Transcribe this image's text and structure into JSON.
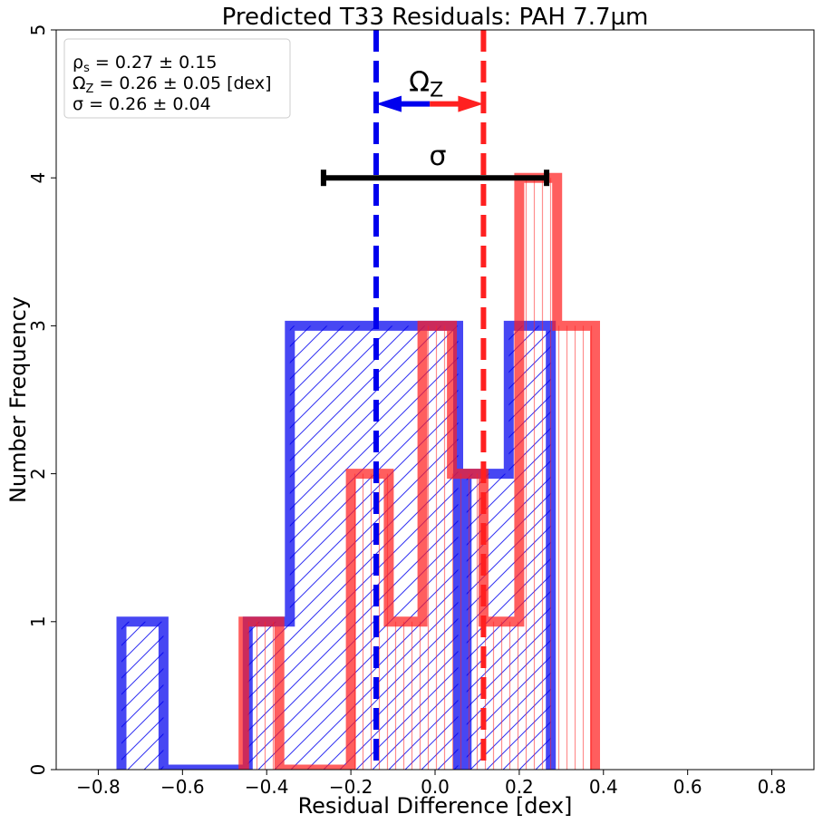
{
  "chart_data": {
    "type": "histogram",
    "title": "Predicted T33 Residuals: PAH 7.7µm",
    "xlabel": "Residual Difference [dex]",
    "ylabel": "Number Frequency",
    "xlim": [
      -0.9,
      0.9
    ],
    "ylim": [
      0,
      5
    ],
    "xticks": [
      -0.8,
      -0.6,
      -0.4,
      -0.2,
      0.0,
      0.2,
      0.4,
      0.6,
      0.8
    ],
    "xtick_labels": [
      "−0.8",
      "−0.6",
      "−0.4",
      "−0.2",
      "0.0",
      "0.2",
      "0.4",
      "0.6",
      "0.8"
    ],
    "yticks": [
      0,
      1,
      2,
      3,
      4,
      5
    ],
    "ytick_labels": [
      "0",
      "1",
      "2",
      "3",
      "4",
      "5"
    ],
    "grid": false,
    "legend_position": "top-left",
    "stats_box": [
      {
        "sym": "ρ",
        "sub": "s",
        "rest": " = 0.27 ± 0.15"
      },
      {
        "sym": "Ω",
        "sub": "Z",
        "rest": " = 0.26 ± 0.05 [dex]"
      },
      {
        "sym": "σ",
        "sub": "",
        "rest": " = 0.26 ± 0.04"
      }
    ],
    "series": [
      {
        "color": "#0000ee",
        "hatch": "diagonal",
        "bin_edges": [
          -0.745,
          -0.645,
          -0.545,
          -0.445,
          -0.345,
          -0.245,
          -0.145,
          -0.045,
          0.055,
          0.075,
          0.175,
          0.275
        ],
        "counts": [
          1,
          0,
          0,
          1,
          3,
          3,
          3,
          3,
          0,
          2,
          3
        ],
        "median": -0.14
      },
      {
        "color": "#ff2020",
        "hatch": "vertical",
        "bin_edges": [
          -0.455,
          -0.37,
          -0.2,
          -0.11,
          -0.03,
          0.04,
          0.115,
          0.2,
          0.29,
          0.38
        ],
        "counts": [
          1,
          0,
          2,
          1,
          3,
          2,
          1,
          4,
          3
        ],
        "median": 0.115
      }
    ],
    "omega_arrow": {
      "label_sym": "Ω",
      "label_sub": "Z",
      "x_from": -0.14,
      "x_to": 0.115,
      "y": 4.5
    },
    "sigma_bar": {
      "label": "σ",
      "x_from": -0.265,
      "x_to": 0.265,
      "y": 4.0
    }
  }
}
